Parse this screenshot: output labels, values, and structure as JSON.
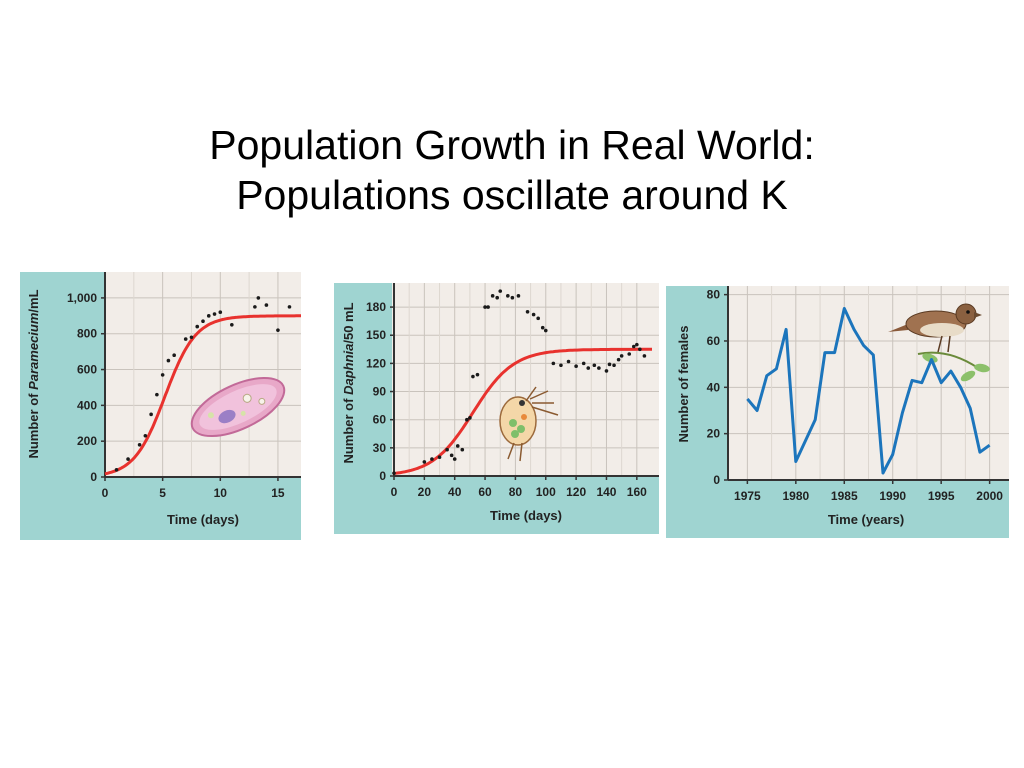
{
  "slide": {
    "title_line1": "Population Growth in Real World:",
    "title_line2": "Populations oscillate around K"
  },
  "colors": {
    "panel_border": "#9fd4d1",
    "plot_bg": "#f2ede8",
    "red_curve": "#e8322e",
    "blue_line": "#1c75bc",
    "dots": "#1a1a1a"
  },
  "chart_data": [
    {
      "type": "scatter",
      "name": "paramecium",
      "xlabel": "Time (days)",
      "ylabel_prefix": "Number of ",
      "ylabel_italic": "Paramecium",
      "ylabel_suffix": "/mL",
      "xlim": [
        0,
        17
      ],
      "ylim": [
        0,
        1100
      ],
      "xticks": [
        0,
        5,
        10,
        15
      ],
      "yticks": [
        0,
        200,
        400,
        600,
        800,
        1000
      ],
      "ytick_labels": [
        "0",
        "200",
        "400",
        "600",
        "800",
        "1,000"
      ],
      "grid": true,
      "curve": "logistic",
      "K": 900,
      "points": [
        [
          1,
          40
        ],
        [
          2,
          100
        ],
        [
          3,
          180
        ],
        [
          3.5,
          230
        ],
        [
          4,
          350
        ],
        [
          4.5,
          460
        ],
        [
          5,
          570
        ],
        [
          5.5,
          650
        ],
        [
          6,
          680
        ],
        [
          7,
          770
        ],
        [
          7.5,
          780
        ],
        [
          8,
          840
        ],
        [
          8.5,
          870
        ],
        [
          9,
          900
        ],
        [
          9.5,
          910
        ],
        [
          10,
          920
        ],
        [
          11,
          850
        ],
        [
          13,
          950
        ],
        [
          13.3,
          1000
        ],
        [
          14,
          960
        ],
        [
          15,
          820
        ],
        [
          16,
          950
        ]
      ]
    },
    {
      "type": "scatter",
      "name": "daphnia",
      "xlabel": "Time (days)",
      "ylabel_prefix": "Number of ",
      "ylabel_italic": "Daphnia",
      "ylabel_suffix": "/50 mL",
      "xlim": [
        0,
        170
      ],
      "ylim": [
        0,
        195
      ],
      "xticks": [
        0,
        20,
        40,
        60,
        80,
        100,
        120,
        140,
        160
      ],
      "yticks": [
        0,
        30,
        60,
        90,
        120,
        150,
        180
      ],
      "grid": true,
      "curve": "logistic",
      "K": 135,
      "points": [
        [
          0,
          3
        ],
        [
          20,
          15
        ],
        [
          25,
          18
        ],
        [
          30,
          20
        ],
        [
          35,
          28
        ],
        [
          38,
          22
        ],
        [
          40,
          18
        ],
        [
          42,
          32
        ],
        [
          45,
          28
        ],
        [
          48,
          60
        ],
        [
          50,
          62
        ],
        [
          52,
          106
        ],
        [
          55,
          108
        ],
        [
          60,
          180
        ],
        [
          62,
          180
        ],
        [
          65,
          192
        ],
        [
          68,
          190
        ],
        [
          70,
          197
        ],
        [
          75,
          192
        ],
        [
          78,
          190
        ],
        [
          82,
          192
        ],
        [
          88,
          175
        ],
        [
          92,
          172
        ],
        [
          95,
          168
        ],
        [
          98,
          158
        ],
        [
          100,
          155
        ],
        [
          105,
          120
        ],
        [
          110,
          118
        ],
        [
          115,
          122
        ],
        [
          120,
          117
        ],
        [
          125,
          120
        ],
        [
          128,
          115
        ],
        [
          132,
          118
        ],
        [
          135,
          115
        ],
        [
          140,
          112
        ],
        [
          142,
          119
        ],
        [
          145,
          118
        ],
        [
          148,
          124
        ],
        [
          150,
          128
        ],
        [
          155,
          130
        ],
        [
          158,
          138
        ],
        [
          160,
          140
        ],
        [
          162,
          135
        ],
        [
          165,
          128
        ]
      ]
    },
    {
      "type": "line",
      "name": "song-sparrow",
      "xlabel": "Time (years)",
      "ylabel": "Number of females",
      "xlim": [
        1973,
        2002
      ],
      "ylim": [
        0,
        82
      ],
      "xticks": [
        1975,
        1980,
        1985,
        1990,
        1995,
        2000
      ],
      "yticks": [
        0,
        20,
        40,
        60,
        80
      ],
      "grid": true,
      "x": [
        1975,
        1976,
        1977,
        1978,
        1979,
        1980,
        1981,
        1982,
        1983,
        1984,
        1985,
        1986,
        1987,
        1988,
        1989,
        1990,
        1991,
        1992,
        1993,
        1994,
        1995,
        1996,
        1997,
        1998,
        1999,
        2000
      ],
      "y": [
        35,
        30,
        45,
        48,
        65,
        8,
        17,
        26,
        55,
        55,
        74,
        65,
        58,
        54,
        3,
        11,
        29,
        43,
        42,
        52,
        42,
        47,
        40,
        31,
        12,
        15
      ]
    }
  ]
}
